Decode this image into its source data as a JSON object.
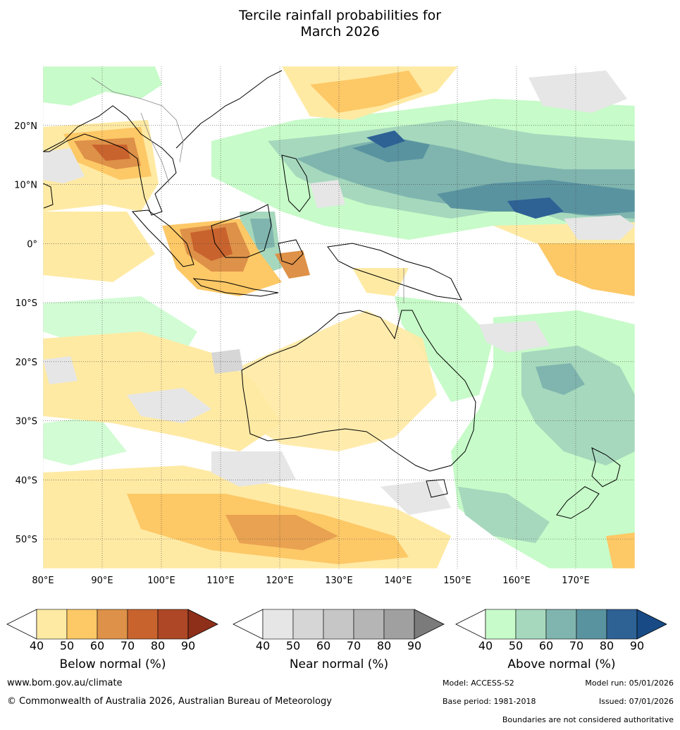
{
  "title": {
    "line1": "Tercile rainfall probabilities for",
    "line2": "March 2026"
  },
  "map": {
    "lon_ticks": [
      "80°E",
      "90°E",
      "100°E",
      "110°E",
      "120°E",
      "130°E",
      "140°E",
      "150°E",
      "160°E",
      "170°E"
    ],
    "lat_ticks": [
      "20°N",
      "10°N",
      "0°",
      "10°S",
      "20°S",
      "30°S",
      "40°S",
      "50°S"
    ],
    "extent": {
      "lon": [
        80,
        180
      ],
      "lat": [
        -55,
        30
      ]
    }
  },
  "colorbars": [
    {
      "label": "Below normal (%)",
      "ticks": [
        "40",
        "50",
        "60",
        "70",
        "80",
        "90"
      ],
      "colors": [
        "#ffffff",
        "#ffeaa4",
        "#fdc866",
        "#de9148",
        "#c9632e",
        "#ad4726",
        "#8e2f1a"
      ]
    },
    {
      "label": "Near normal (%)",
      "ticks": [
        "40",
        "50",
        "60",
        "70",
        "80",
        "90"
      ],
      "colors": [
        "#ffffff",
        "#e6e6e6",
        "#d6d6d6",
        "#c6c6c6",
        "#b5b5b5",
        "#a0a0a0",
        "#7b7b7b"
      ]
    },
    {
      "label": "Above normal (%)",
      "ticks": [
        "40",
        "50",
        "60",
        "70",
        "80",
        "90"
      ],
      "colors": [
        "#ffffff",
        "#c7fbc9",
        "#a6d8bd",
        "#7fb5ae",
        "#5a93a0",
        "#2e6295",
        "#184b85"
      ]
    }
  ],
  "footer": {
    "url": "www.bom.gov.au/climate",
    "copyright": "© Commonwealth of Australia 2026, Australian Bureau of Meteorology",
    "model": "Model: ACCESS-S2",
    "model_run": "Model run: 05/01/2026",
    "base_period": "Base period: 1981-2018",
    "issued": "Issued: 07/01/2026",
    "disclaimer": "Boundaries are not considered authoritative"
  }
}
